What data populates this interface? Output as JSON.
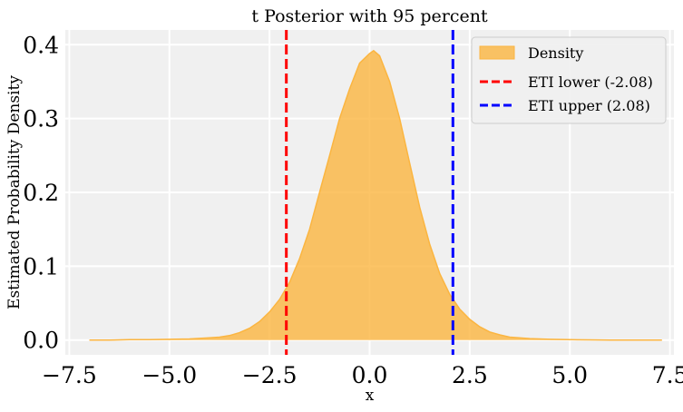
{
  "chart_data": {
    "type": "area",
    "title": "t Posterior with 95 percent",
    "xlabel": "x",
    "ylabel": "Estimated Probability Density",
    "xlim": [
      -7.6,
      7.6
    ],
    "ylim": [
      -0.02,
      0.42
    ],
    "xticks": [
      -7.5,
      -5.0,
      -2.5,
      0.0,
      2.5,
      5.0,
      7.5
    ],
    "xtick_labels": [
      "−7.5",
      "−5.0",
      "−2.5",
      "0.0",
      "2.5",
      "5.0",
      "7.5"
    ],
    "yticks": [
      0.0,
      0.1,
      0.2,
      0.3,
      0.4
    ],
    "ytick_labels": [
      "0.0",
      "0.1",
      "0.2",
      "0.3",
      "0.4"
    ],
    "grid": true,
    "legend_position": "top-right",
    "series": [
      {
        "name": "Density",
        "color": "#FBB540",
        "x": [
          -7.0,
          -6.5,
          -6.0,
          -5.5,
          -5.0,
          -4.5,
          -4.0,
          -3.75,
          -3.5,
          -3.25,
          -3.0,
          -2.75,
          -2.5,
          -2.25,
          -2.0,
          -1.75,
          -1.5,
          -1.25,
          -1.0,
          -0.75,
          -0.5,
          -0.25,
          0.0,
          0.1,
          0.25,
          0.5,
          0.75,
          1.0,
          1.25,
          1.5,
          1.75,
          2.0,
          2.25,
          2.5,
          2.75,
          3.0,
          3.25,
          3.5,
          4.0,
          4.5,
          5.0,
          5.5,
          6.0,
          6.5,
          7.0,
          7.3
        ],
        "y": [
          0.0,
          0.0,
          0.0005,
          0.0005,
          0.001,
          0.0015,
          0.003,
          0.004,
          0.006,
          0.01,
          0.016,
          0.025,
          0.038,
          0.055,
          0.078,
          0.11,
          0.15,
          0.2,
          0.25,
          0.3,
          0.34,
          0.375,
          0.388,
          0.392,
          0.385,
          0.35,
          0.3,
          0.24,
          0.18,
          0.13,
          0.09,
          0.062,
          0.042,
          0.028,
          0.018,
          0.011,
          0.007,
          0.004,
          0.002,
          0.001,
          0.0005,
          0.0003,
          0.0,
          0.0,
          0.0,
          0.0
        ]
      }
    ],
    "vlines": [
      {
        "name": "ETI lower (-2.08)",
        "x": -2.08,
        "color": "#FF0000",
        "style": "dashed"
      },
      {
        "name": "ETI upper (2.08)",
        "x": 2.08,
        "color": "#0000FF",
        "style": "dashed"
      }
    ]
  }
}
